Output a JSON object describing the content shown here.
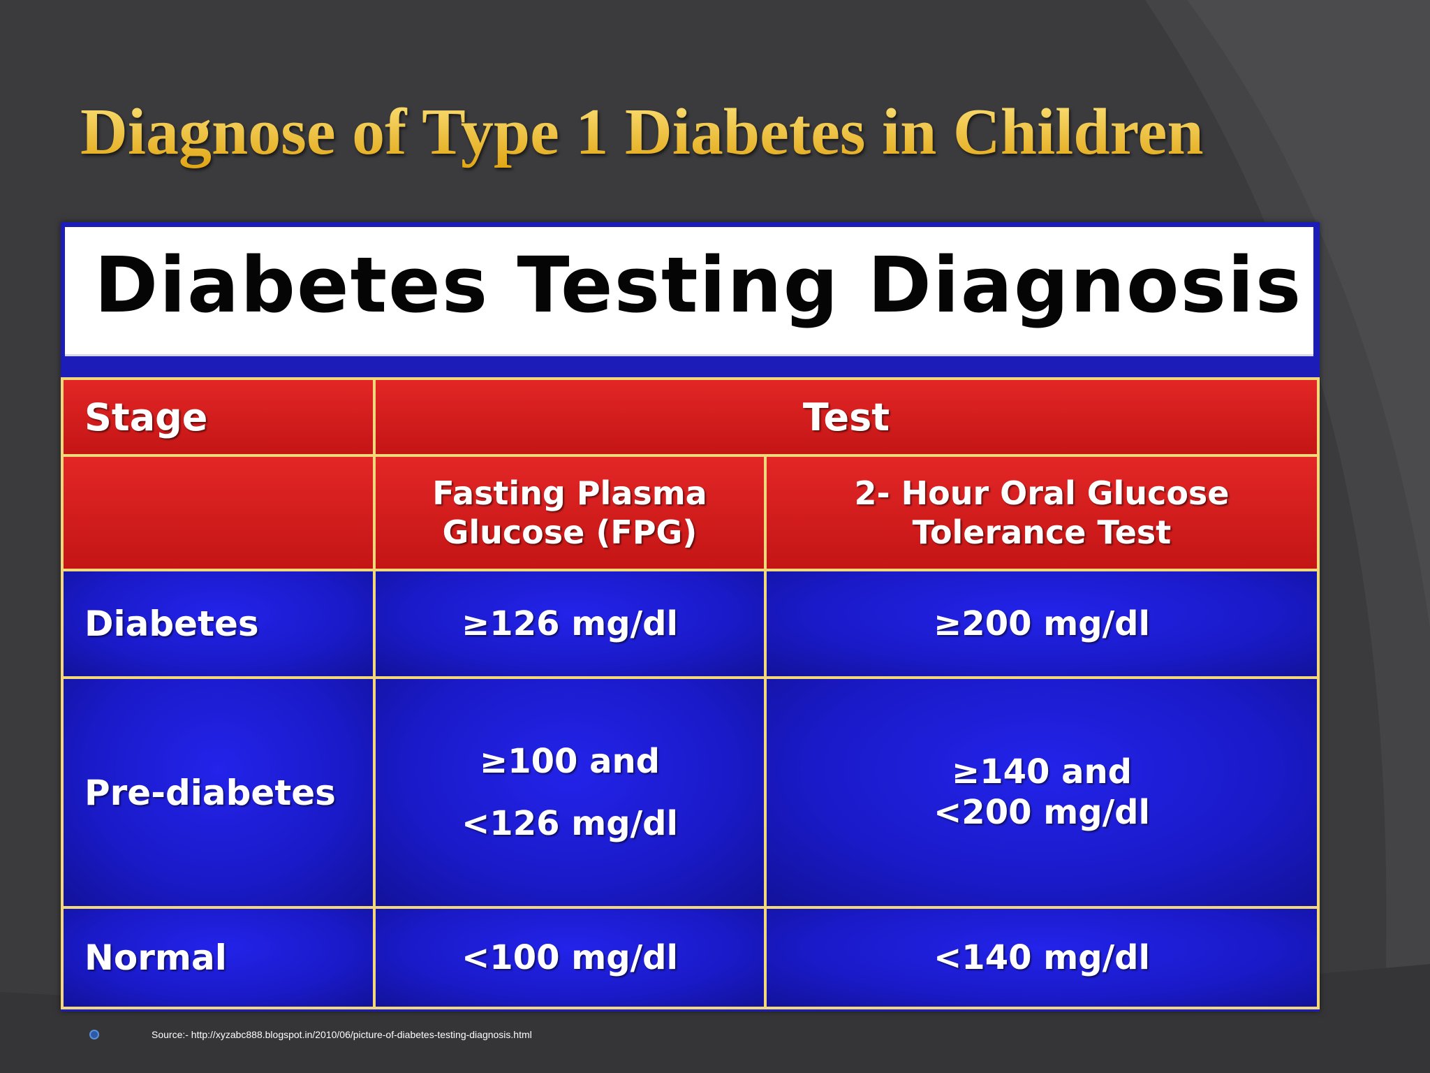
{
  "slide": {
    "title": "Diagnose of Type 1 Diabetes in Children",
    "source": "Source:- http://xyzabc888.blogspot.in/2010/06/picture-of-diabetes-testing-diagnosis.html"
  },
  "figure": {
    "title": "Diabetes Testing Diagnosis",
    "table": {
      "stage_header": "Stage",
      "test_header": "Test",
      "columns": [
        "Fasting Plasma\nGlucose (FPG)",
        "2- Hour Oral Glucose\nTolerance Test"
      ],
      "rows": [
        {
          "stage": "Diabetes",
          "fpg": "≥126 mg/dl",
          "ogtt": "≥200 mg/dl"
        },
        {
          "stage": "Pre-diabetes",
          "fpg": "≥100 and\n<126 mg/dl",
          "ogtt": "≥140 and\n<200 mg/dl"
        },
        {
          "stage": "Normal",
          "fpg": "<100 mg/dl",
          "ogtt": "<140 mg/dl"
        }
      ]
    }
  },
  "colors": {
    "background": "#3b3b3d",
    "title": "#f2c12e",
    "header_red": "#d61c1c",
    "body_blue": "#1c1cd0",
    "divider": "#f2d87a"
  }
}
